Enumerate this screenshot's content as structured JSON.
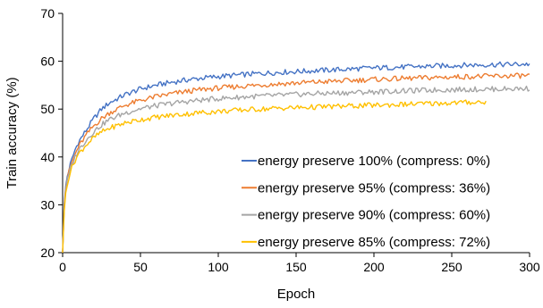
{
  "chart_data": {
    "type": "line",
    "title": "",
    "xlabel": "Epoch",
    "ylabel": "Train accuracy (%)",
    "xlim": [
      0,
      300
    ],
    "ylim": [
      20,
      70
    ],
    "xticks": [
      0,
      50,
      100,
      150,
      200,
      250,
      300
    ],
    "yticks": [
      20,
      30,
      40,
      50,
      60,
      70
    ],
    "x_tick_labels": [
      "0",
      "50",
      "100",
      "150",
      "200",
      "250",
      "300"
    ],
    "y_tick_labels": [
      "20",
      "30",
      "40",
      "50",
      "60",
      "70"
    ],
    "grid": false,
    "legend_position": "right",
    "series": [
      {
        "name": "energy preserve 100% (compress: 0%)",
        "color": "#4472C4",
        "x": [
          0,
          1,
          2,
          3,
          5,
          8,
          10,
          15,
          20,
          25,
          30,
          40,
          50,
          60,
          70,
          80,
          90,
          100,
          120,
          140,
          160,
          180,
          200,
          220,
          240,
          260,
          280,
          300
        ],
        "y": [
          20,
          30,
          34,
          36,
          38.5,
          41.5,
          43,
          45.5,
          48,
          50,
          51.3,
          53,
          54.2,
          55,
          55.6,
          56.1,
          56.5,
          56.8,
          57.3,
          57.7,
          58,
          58.3,
          58.6,
          58.8,
          59,
          59.2,
          59.3,
          59.4
        ]
      },
      {
        "name": "energy preserve 95% (compress: 36%)",
        "color": "#ED7D31",
        "x": [
          0,
          1,
          2,
          3,
          5,
          8,
          10,
          15,
          20,
          25,
          30,
          40,
          50,
          60,
          70,
          80,
          90,
          100,
          120,
          140,
          160,
          180,
          200,
          220,
          240,
          260,
          280,
          300
        ],
        "y": [
          20,
          29.5,
          33.5,
          35.5,
          38,
          40.5,
          42,
          44.5,
          46.5,
          48,
          49.2,
          50.8,
          51.8,
          52.6,
          53.2,
          53.7,
          54.1,
          54.4,
          54.9,
          55.3,
          55.6,
          55.9,
          56.2,
          56.4,
          56.6,
          56.8,
          56.9,
          57
        ]
      },
      {
        "name": "energy preserve 90% (compress: 60%)",
        "color": "#A5A5A5",
        "x": [
          0,
          1,
          2,
          3,
          5,
          8,
          10,
          15,
          20,
          25,
          30,
          40,
          50,
          60,
          70,
          80,
          90,
          100,
          120,
          140,
          160,
          180,
          200,
          220,
          240,
          260,
          280,
          300
        ],
        "y": [
          20,
          29,
          33,
          35,
          37.5,
          40,
          41.3,
          43.5,
          45.3,
          46.7,
          47.8,
          49.2,
          50.1,
          50.7,
          51.2,
          51.6,
          51.9,
          52.2,
          52.6,
          52.9,
          53.2,
          53.4,
          53.6,
          53.8,
          54,
          54.1,
          54.2,
          54.3
        ]
      },
      {
        "name": "energy preserve 85% (compress: 72%)",
        "color": "#FFC000",
        "x": [
          0,
          1,
          2,
          3,
          5,
          8,
          10,
          15,
          20,
          25,
          30,
          40,
          50,
          60,
          70,
          80,
          90,
          100,
          120,
          140,
          160,
          180,
          200,
          220,
          240,
          260,
          272
        ],
        "y": [
          20,
          28.5,
          32.5,
          34.5,
          37,
          39.3,
          40.5,
          42.5,
          44,
          45.2,
          46,
          47.1,
          47.8,
          48.3,
          48.7,
          49,
          49.3,
          49.5,
          49.9,
          50.2,
          50.4,
          50.6,
          50.8,
          51,
          51.2,
          51.4,
          51.5
        ]
      }
    ]
  }
}
